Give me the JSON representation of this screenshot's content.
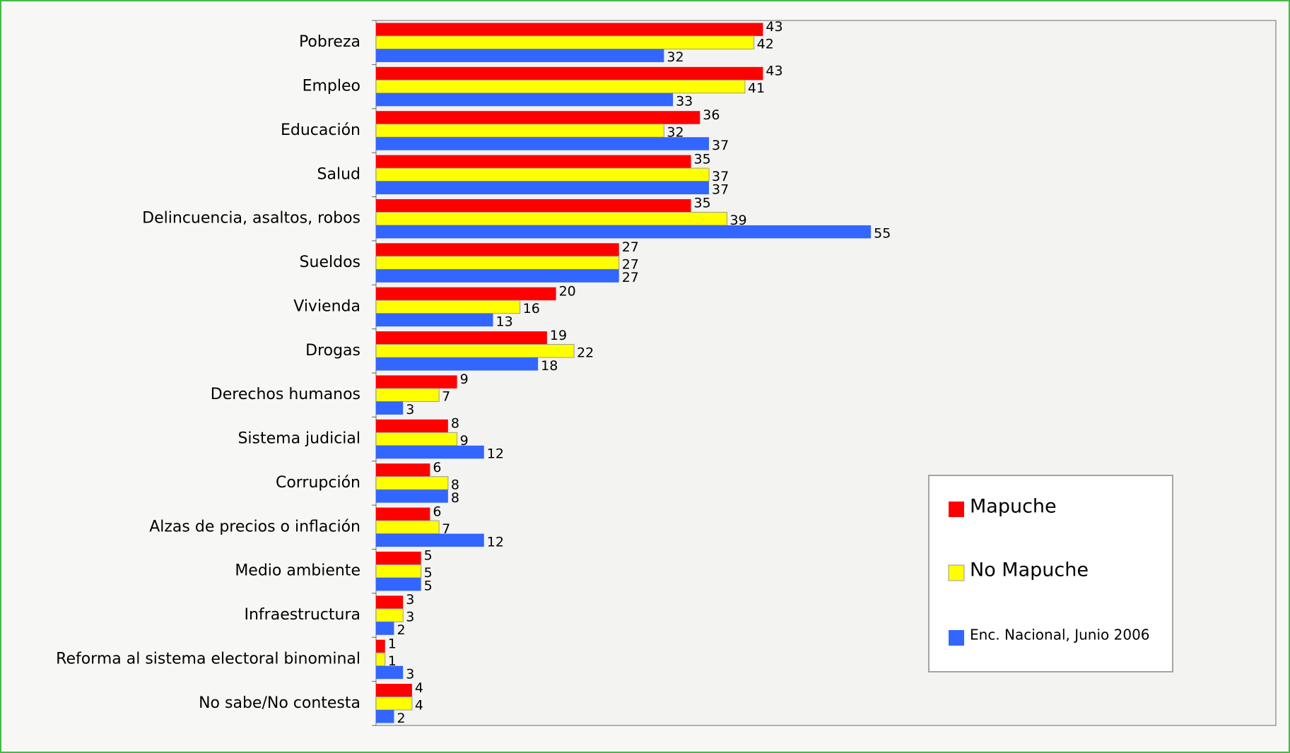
{
  "chart_data": {
    "type": "bar",
    "orientation": "horizontal",
    "categories": [
      "Pobreza",
      "Empleo",
      "Educación",
      "Salud",
      "Delincuencia, asaltos, robos",
      "Sueldos",
      "Vivienda",
      "Drogas",
      "Derechos humanos",
      "Sistema judicial",
      "Corrupción",
      "Alzas de precios o inflación",
      "Medio ambiente",
      "Infraestructura",
      "Reforma al sistema electoral binominal",
      "No sabe/No contesta"
    ],
    "series": [
      {
        "name": "Mapuche",
        "color": "#ff0000",
        "values": [
          43,
          43,
          36,
          35,
          35,
          27,
          20,
          19,
          9,
          8,
          6,
          6,
          5,
          3,
          1,
          4
        ]
      },
      {
        "name": "No Mapuche",
        "color": "#ffff00",
        "values": [
          42,
          41,
          32,
          37,
          39,
          27,
          16,
          22,
          7,
          9,
          8,
          7,
          5,
          3,
          1,
          4
        ]
      },
      {
        "name": "Enc. Nacional, Junio 2006",
        "color": "#3366ff",
        "values": [
          32,
          33,
          37,
          37,
          55,
          27,
          13,
          18,
          3,
          12,
          8,
          12,
          5,
          2,
          3,
          2
        ]
      }
    ],
    "xlim": [
      0,
      100
    ],
    "legend": "right"
  }
}
